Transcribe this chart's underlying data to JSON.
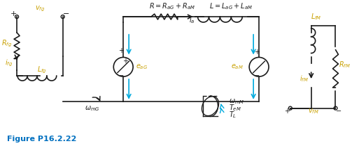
{
  "title": "Figure P16.2.22",
  "title_color": "#0070C0",
  "bg_color": "#ffffff",
  "line_color": "#1a1a1a",
  "label_color": "#C8A000",
  "arrow_color": "#00AADD",
  "component_color": "#1a1a1a",
  "figsize": [
    5.03,
    2.1
  ],
  "dpi": 100
}
